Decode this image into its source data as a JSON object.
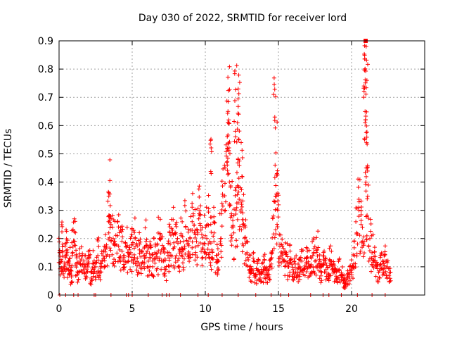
{
  "chart_data": {
    "type": "scatter",
    "title": "Day 030 of 2022, SRMTID for receiver lord",
    "xlabel": "GPS time / hours",
    "ylabel": "SRMTID / TECUs",
    "xlim": [
      0,
      25
    ],
    "ylim": [
      0,
      0.9
    ],
    "xticks": [
      0,
      5,
      10,
      15,
      20
    ],
    "yticks": [
      0,
      0.1,
      0.2,
      0.3,
      0.4,
      0.5,
      0.6,
      0.7,
      0.8,
      0.9
    ],
    "grid": true,
    "marker": "plus",
    "color": "#ff0000",
    "series": [
      {
        "name": "SRMTID",
        "x": [
          0.05,
          0.15,
          0.25,
          0.35,
          0.45,
          0.55,
          0.65,
          0.75,
          0.85,
          0.95,
          1.05,
          1.15,
          1.3,
          1.45,
          1.6,
          1.75,
          1.9,
          2.05,
          2.2,
          2.35,
          2.5,
          2.65,
          2.8,
          2.95,
          3.1,
          3.25,
          3.4,
          3.55,
          3.7,
          3.85,
          4.0,
          4.15,
          4.3,
          4.45,
          4.6,
          4.75,
          4.9,
          5.05,
          5.2,
          5.35,
          5.5,
          5.65,
          5.8,
          5.95,
          6.1,
          6.25,
          6.4,
          6.55,
          6.7,
          6.85,
          7.0,
          7.15,
          7.3,
          7.45,
          7.6,
          7.75,
          7.9,
          8.05,
          8.2,
          8.35,
          8.5,
          8.65,
          8.8,
          8.95,
          9.1,
          9.25,
          9.4,
          9.55,
          9.7,
          9.85,
          10.0,
          10.15,
          10.3,
          10.45,
          10.6,
          10.75,
          10.9,
          11.05,
          11.2,
          11.35,
          11.5,
          11.65,
          11.8,
          11.95,
          12.1,
          12.25,
          12.4,
          12.55,
          12.7,
          12.85,
          13.0,
          13.15,
          13.3,
          13.45,
          13.6,
          13.75,
          13.9,
          14.05,
          14.2,
          14.35,
          14.5,
          14.65,
          14.8,
          14.95,
          15.1,
          15.25,
          15.4,
          15.55,
          15.7,
          15.85,
          16.0,
          16.15,
          16.3,
          16.45,
          16.6,
          16.75,
          16.9,
          17.05,
          17.2,
          17.35,
          17.5,
          17.65,
          17.8,
          17.95,
          18.1,
          18.25,
          18.4,
          18.55,
          18.7,
          18.85,
          19.0,
          19.15,
          19.3,
          19.45,
          19.6,
          19.75,
          19.9,
          20.05,
          20.2,
          20.35,
          20.5,
          20.65,
          20.8,
          20.9,
          20.95,
          21.0,
          21.1,
          21.25,
          21.4,
          21.55,
          21.7,
          21.85,
          22.0,
          22.15,
          22.3,
          22.45,
          22.6,
          11.55,
          11.6,
          12.2,
          12.3,
          14.75,
          14.9,
          20.95,
          21.0,
          20.92,
          21.05,
          10.4,
          3.4,
          12.05,
          12.5
        ],
        "y": [
          0.15,
          0.12,
          0.18,
          0.1,
          0.14,
          0.16,
          0.09,
          0.13,
          0.07,
          0.17,
          0.19,
          0.11,
          0.08,
          0.12,
          0.14,
          0.1,
          0.09,
          0.13,
          0.06,
          0.11,
          0.1,
          0.14,
          0.08,
          0.12,
          0.13,
          0.17,
          0.22,
          0.25,
          0.2,
          0.18,
          0.21,
          0.16,
          0.19,
          0.14,
          0.17,
          0.12,
          0.15,
          0.18,
          0.2,
          0.13,
          0.16,
          0.11,
          0.14,
          0.19,
          0.12,
          0.17,
          0.1,
          0.15,
          0.13,
          0.2,
          0.16,
          0.12,
          0.09,
          0.14,
          0.18,
          0.22,
          0.17,
          0.19,
          0.13,
          0.21,
          0.16,
          0.24,
          0.18,
          0.2,
          0.26,
          0.22,
          0.19,
          0.27,
          0.23,
          0.18,
          0.21,
          0.25,
          0.19,
          0.16,
          0.22,
          0.14,
          0.12,
          0.2,
          0.35,
          0.45,
          0.52,
          0.4,
          0.28,
          0.22,
          0.3,
          0.48,
          0.38,
          0.25,
          0.2,
          0.15,
          0.1,
          0.08,
          0.12,
          0.07,
          0.09,
          0.06,
          0.08,
          0.1,
          0.07,
          0.09,
          0.11,
          0.28,
          0.35,
          0.3,
          0.18,
          0.14,
          0.12,
          0.15,
          0.1,
          0.13,
          0.09,
          0.11,
          0.08,
          0.1,
          0.12,
          0.09,
          0.13,
          0.11,
          0.1,
          0.14,
          0.12,
          0.16,
          0.1,
          0.08,
          0.11,
          0.09,
          0.07,
          0.12,
          0.1,
          0.08,
          0.06,
          0.09,
          0.07,
          0.05,
          0.04,
          0.06,
          0.08,
          0.1,
          0.14,
          0.22,
          0.3,
          0.25,
          0.18,
          0.55,
          0.62,
          0.45,
          0.35,
          0.2,
          0.15,
          0.12,
          0.1,
          0.08,
          0.11,
          0.09,
          0.12,
          0.1,
          0.08,
          0.65,
          0.62,
          0.61,
          0.55,
          0.63,
          0.43,
          0.9,
          0.88,
          0.8,
          0.76,
          0.43,
          0.35,
          0.58,
          0.42
        ],
        "zero_points": [
          0.05,
          0.45,
          1.0,
          1.3,
          2.4,
          2.5,
          3.55,
          4.6,
          4.75,
          5.0,
          6.1,
          7.05,
          7.35,
          7.55,
          8.3,
          9.5,
          10.2,
          11.15,
          12.25,
          13.45,
          14.5,
          15.15,
          15.7,
          17.2,
          18.05,
          18.45,
          19.3,
          20.4,
          21.4,
          22.3
        ]
      }
    ]
  }
}
